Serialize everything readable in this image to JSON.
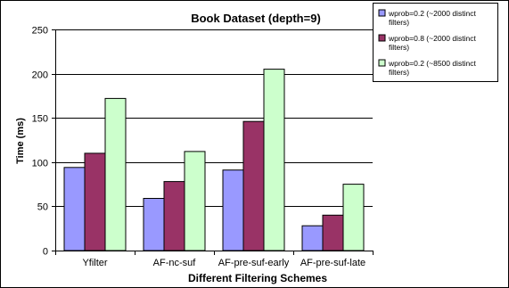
{
  "chart_data": {
    "type": "bar",
    "title": "Book Dataset (depth=9)",
    "xlabel": "Different Filtering Schemes",
    "ylabel": "Time (ms)",
    "ylim": [
      0,
      250
    ],
    "yticks": [
      0,
      50,
      100,
      150,
      200,
      250
    ],
    "grid": true,
    "legend_position": "top-right",
    "categories": [
      "Yfilter",
      "AF-nc-suf",
      "AF-pre-suf-early",
      "AF-pre-suf-late"
    ],
    "series": [
      {
        "name": "wprob=0.2 (~2000 distinct filters)",
        "color": "#9999ff",
        "values": [
          94,
          59,
          91,
          28
        ]
      },
      {
        "name": "wprob=0.8 (~2000 distinct filters)",
        "color": "#993366",
        "values": [
          110,
          78,
          146,
          40
        ]
      },
      {
        "name": "wprob=0.2 (~8500 distinct filters)",
        "color": "#ccffcc",
        "values": [
          172,
          112,
          205,
          75
        ]
      }
    ]
  }
}
